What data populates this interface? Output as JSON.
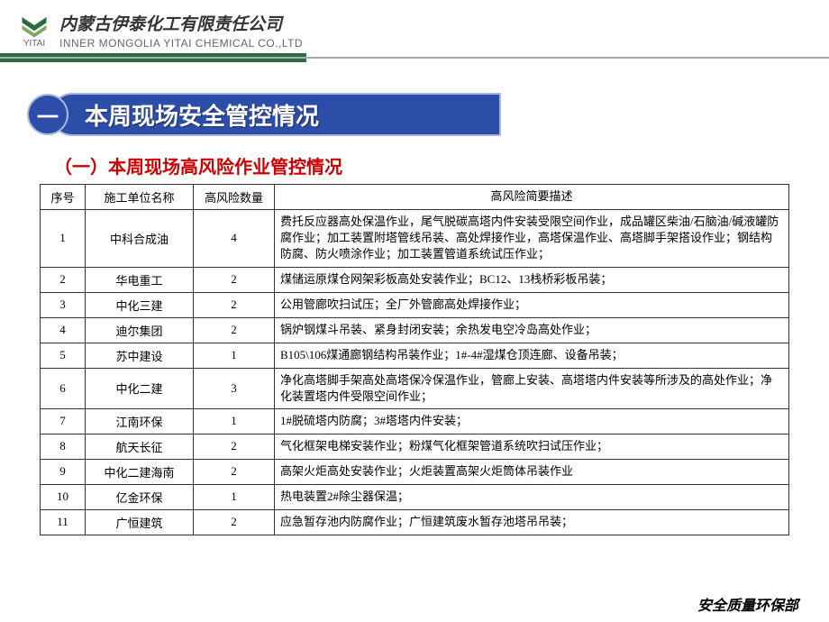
{
  "header": {
    "company_cn": "内蒙古伊泰化工有限责任公司",
    "company_en": "INNER MONGOLIA YITAI CHEMICAL CO.,LTD",
    "brand_label": "YITAI",
    "logo_color": "#2a6e3f"
  },
  "section": {
    "number": "一",
    "title": "本周现场安全管控情况",
    "subtitle": "（一）本周现场高风险作业管控情况",
    "title_bg": "#2d4ea8",
    "subtitle_color": "#cc0000"
  },
  "table": {
    "columns": [
      "序号",
      "施工单位名称",
      "高风险数量",
      "高风险简要描述"
    ],
    "rows": [
      [
        "1",
        "中科合成油",
        "4",
        "费托反应器高处保温作业，尾气脱碳高塔内件安装受限空间作业，成品罐区柴油/石脑油/碱液罐防腐作业；加工装置附塔管线吊装、高处焊接作业，高塔保温作业、高塔脚手架搭设作业；钢结构防腐、防火喷涂作业；加工装置管道系统试压作业；"
      ],
      [
        "2",
        "华电重工",
        "2",
        "煤储运原煤仓网架彩板高处安装作业；BC12、13栈桥彩板吊装；"
      ],
      [
        "3",
        "中化三建",
        "2",
        "公用管廊吹扫试压；全厂外管廊高处焊接作业；"
      ],
      [
        "4",
        "迪尔集团",
        "2",
        "锅炉钢煤斗吊装、紧身封闭安装；余热发电空冷岛高处作业；"
      ],
      [
        "5",
        "苏中建设",
        "1",
        "B105\\106煤通廊钢结构吊装作业；1#-4#湿煤仓顶连廊、设备吊装；"
      ],
      [
        "6",
        "中化二建",
        "3",
        "净化高塔脚手架高处高塔保冷保温作业，管廊上安装、高塔塔内件安装等所涉及的高处作业；净化装置塔内件受限空间作业；"
      ],
      [
        "7",
        "江南环保",
        "1",
        "1#脱硫塔内防腐；3#塔塔内件安装；"
      ],
      [
        "8",
        "航天长征",
        "2",
        "气化框架电梯安装作业；粉煤气化框架管道系统吹扫试压作业；"
      ],
      [
        "9",
        "中化二建海南",
        "2",
        "高架火炬高处安装作业；火炬装置高架火炬筒体吊装作业"
      ],
      [
        "10",
        "亿金环保",
        "1",
        "热电装置2#除尘器保温；"
      ],
      [
        "11",
        "广恒建筑",
        "2",
        "应急暂存池内防腐作业；广恒建筑废水暂存池塔吊吊装；"
      ]
    ]
  },
  "footer": {
    "text": "安全质量环保部"
  }
}
